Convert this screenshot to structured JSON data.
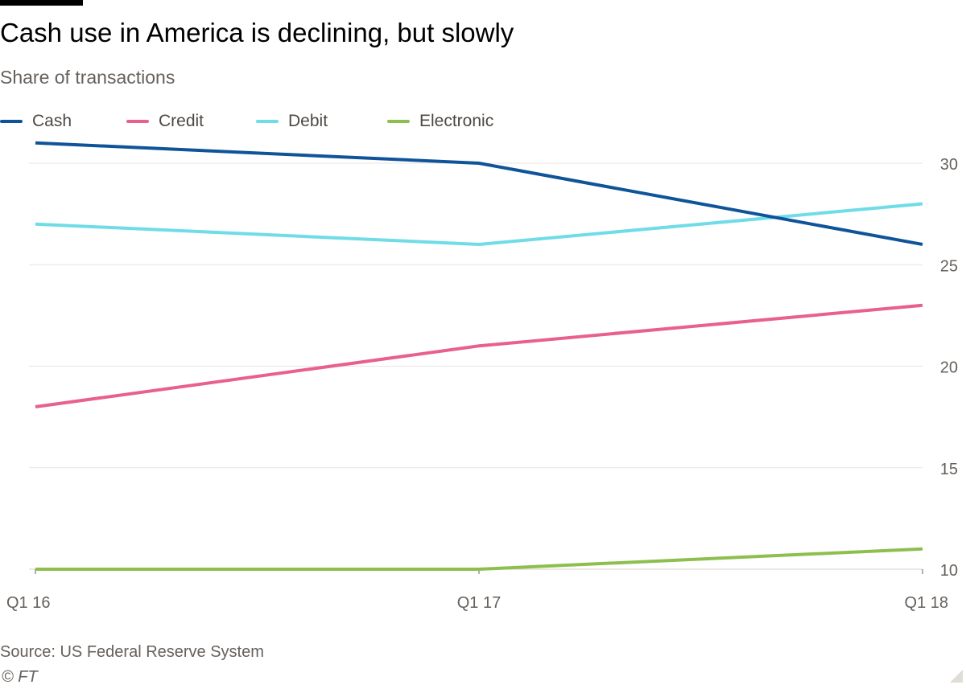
{
  "header": {
    "title": "Cash use in America is declining, but slowly",
    "subtitle": "Share of transactions"
  },
  "footer": {
    "source": "Source: US Federal Reserve System",
    "copyright": "© FT"
  },
  "colors": {
    "cash": "#0f5499",
    "credit": "#e8608f",
    "debit": "#6fdce8",
    "electronic": "#8dbf4e",
    "grid": "#e9e6e2",
    "axis_text": "#66605c"
  },
  "chart_data": {
    "type": "line",
    "title": "Cash use in America is declining, but slowly",
    "subtitle": "Share of transactions",
    "xlabel": "",
    "ylabel": "",
    "x": [
      "Q1 16",
      "Q1 17",
      "Q1 18"
    ],
    "yticks": [
      10,
      15,
      20,
      25,
      30
    ],
    "ylim": [
      10,
      31
    ],
    "y_axis_side": "right",
    "grid": true,
    "legend_position": "top-left",
    "series": [
      {
        "name": "Cash",
        "color": "#0f5499",
        "values": [
          31,
          30,
          26
        ]
      },
      {
        "name": "Credit",
        "color": "#e8608f",
        "values": [
          18,
          21,
          23
        ]
      },
      {
        "name": "Debit",
        "color": "#6fdce8",
        "values": [
          27,
          26,
          28
        ]
      },
      {
        "name": "Electronic",
        "color": "#8dbf4e",
        "values": [
          10,
          10,
          11
        ]
      }
    ]
  }
}
